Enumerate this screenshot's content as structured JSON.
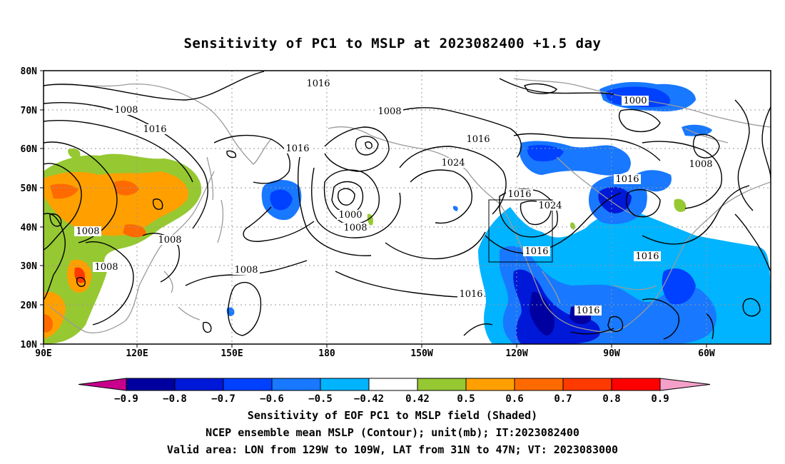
{
  "title": "Sensitivity of PC1 to MSLP at 2023082400 +1.5 day",
  "lat_labels": [
    "80N",
    "70N",
    "60N",
    "50N",
    "40N",
    "30N",
    "20N",
    "10N"
  ],
  "lon_labels": [
    "90E",
    "120E",
    "150E",
    "180",
    "150W",
    "120W",
    "90W",
    "60W"
  ],
  "contour_labels": [
    {
      "text": "1016"
    },
    {
      "text": "1008"
    },
    {
      "text": "1016"
    },
    {
      "text": "1008"
    },
    {
      "text": "1016"
    },
    {
      "text": "1016"
    },
    {
      "text": "1024"
    },
    {
      "text": "1016"
    },
    {
      "text": "1024"
    },
    {
      "text": "1000"
    },
    {
      "text": "1016"
    },
    {
      "text": "1008"
    },
    {
      "text": "1008"
    },
    {
      "text": "1008"
    },
    {
      "text": "1000"
    },
    {
      "text": "1008"
    },
    {
      "text": "1008"
    },
    {
      "text": "1008"
    },
    {
      "text": "1016"
    },
    {
      "text": "1016"
    },
    {
      "text": "1016"
    },
    {
      "text": "1016"
    }
  ],
  "colorbar": {
    "labels": [
      "-0.9",
      "-0.8",
      "-0.7",
      "-0.6",
      "-0.5",
      "-0.42",
      "0.42",
      "0.5",
      "0.6",
      "0.7",
      "0.8",
      "0.9"
    ],
    "colors": [
      "#c8008c",
      "#0000a0",
      "#0018d8",
      "#0040ff",
      "#1878ff",
      "#00b4ff",
      "#ffffff",
      "#96c832",
      "#ffa000",
      "#ff6a00",
      "#ff3a00",
      "#ff0000",
      "#f5a0c8"
    ]
  },
  "footer": {
    "line1": "Sensitivity of EOF PC1 to MSLP field (Shaded)",
    "line2": "NCEP ensemble mean MSLP (Contour); unit(mb); IT:2023082400",
    "line3": "Valid area: LON from 129W to 109W, LAT from 31N to 47N; VT: 2023083000"
  }
}
